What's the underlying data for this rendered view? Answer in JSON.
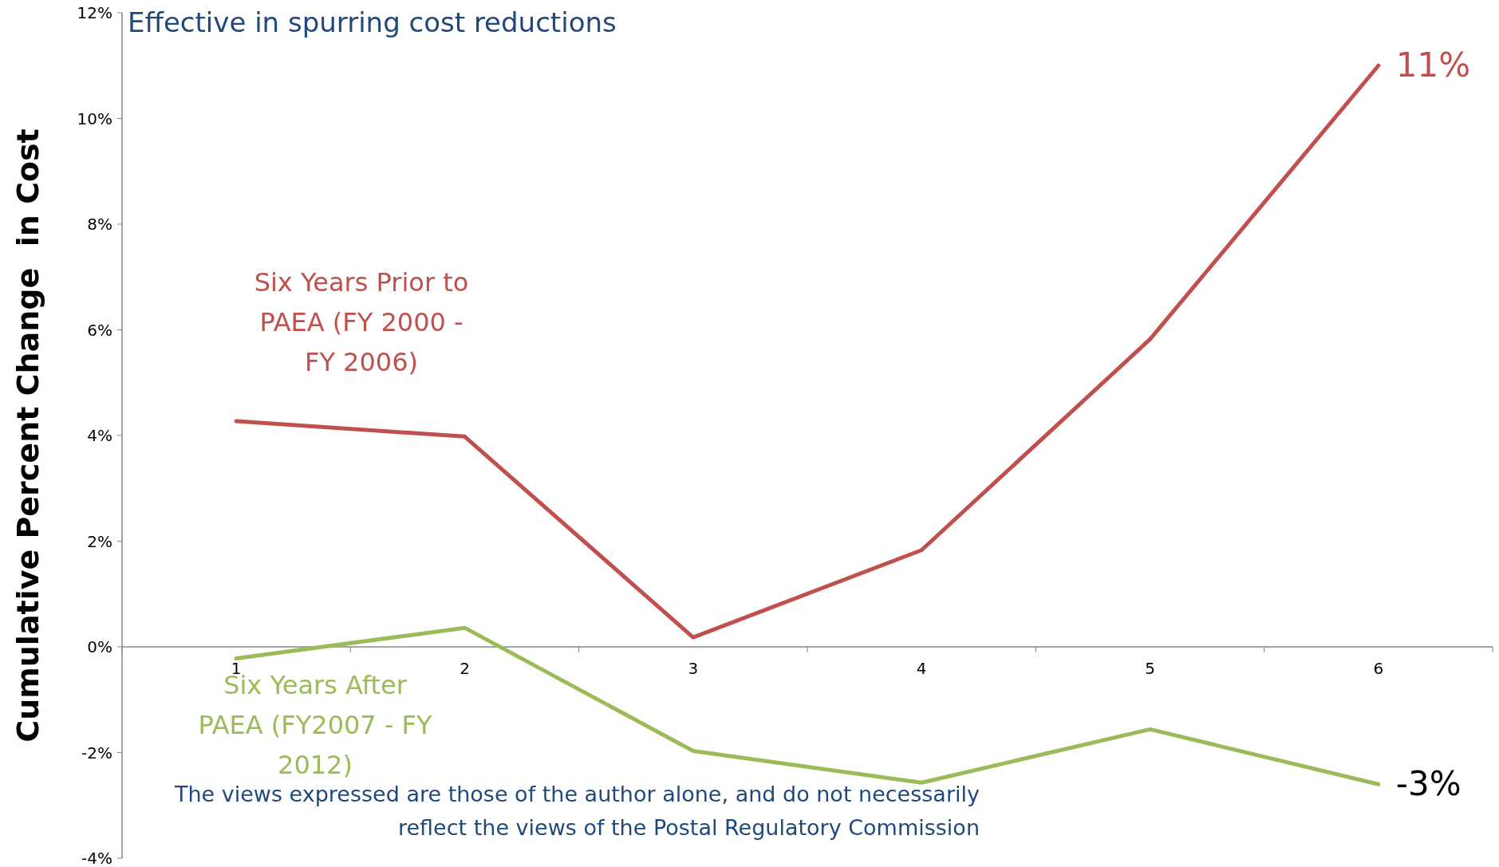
{
  "chart_data": {
    "type": "line",
    "title": "Effective in spurring cost reductions",
    "ylabel": "Cumulative Percent Change  in Cost",
    "categories": [
      "1",
      "2",
      "3",
      "4",
      "5",
      "6"
    ],
    "series": [
      {
        "name": "Six Years Prior to PAEA (FY 2000 - FY 2006)",
        "color": "#c0504d",
        "values": [
          4.27,
          3.98,
          0.18,
          1.83,
          5.82,
          11.0
        ],
        "value_labels": [
          null,
          null,
          null,
          null,
          null,
          "11%"
        ]
      },
      {
        "name": "Six Years After PAEA (FY2007 - FY 2012)",
        "color": "#9bbb59",
        "values": [
          -0.22,
          0.36,
          -1.97,
          -2.57,
          -1.56,
          -2.6
        ],
        "value_labels": [
          null,
          null,
          null,
          null,
          null,
          "-3%"
        ]
      }
    ],
    "ylim": [
      -4,
      12
    ],
    "yticks": [
      {
        "value": -4,
        "label": "-4%"
      },
      {
        "value": -2,
        "label": "-2%"
      },
      {
        "value": 0,
        "label": "0%"
      },
      {
        "value": 2,
        "label": "2%"
      },
      {
        "value": 4,
        "label": "4%"
      },
      {
        "value": 6,
        "label": "6%"
      },
      {
        "value": 8,
        "label": "8%"
      },
      {
        "value": 10,
        "label": "10%"
      },
      {
        "value": 12,
        "label": "12%"
      }
    ],
    "marker": "none",
    "line_style": "solid",
    "annotations": [
      "The views expressed are those of the author alone, and do not necessarily reflect the views of the Postal Regulatory Commission"
    ]
  }
}
